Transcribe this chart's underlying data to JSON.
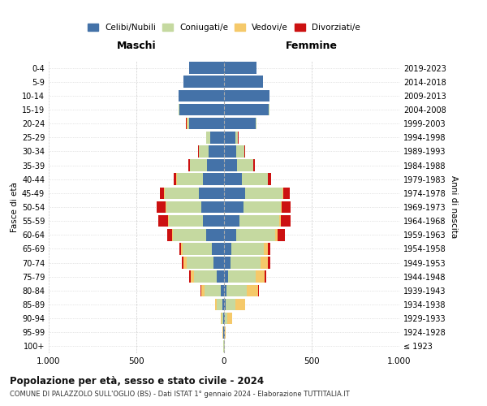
{
  "age_groups": [
    "100+",
    "95-99",
    "90-94",
    "85-89",
    "80-84",
    "75-79",
    "70-74",
    "65-69",
    "60-64",
    "55-59",
    "50-54",
    "45-49",
    "40-44",
    "35-39",
    "30-34",
    "25-29",
    "20-24",
    "15-19",
    "10-14",
    "5-9",
    "0-4"
  ],
  "birth_years": [
    "≤ 1923",
    "1924-1928",
    "1929-1933",
    "1934-1938",
    "1939-1943",
    "1944-1948",
    "1949-1953",
    "1954-1958",
    "1959-1963",
    "1964-1968",
    "1969-1973",
    "1974-1978",
    "1979-1983",
    "1984-1988",
    "1989-1993",
    "1994-1998",
    "1999-2003",
    "2004-2008",
    "2009-2013",
    "2014-2018",
    "2019-2023"
  ],
  "males": {
    "celibi": [
      2,
      3,
      5,
      10,
      20,
      40,
      60,
      70,
      100,
      120,
      130,
      145,
      120,
      95,
      90,
      80,
      200,
      255,
      260,
      230,
      200
    ],
    "coniugati": [
      1,
      3,
      8,
      30,
      90,
      130,
      155,
      165,
      190,
      195,
      200,
      195,
      150,
      100,
      55,
      20,
      10,
      5,
      0,
      0,
      0
    ],
    "vedovi": [
      1,
      2,
      5,
      10,
      20,
      18,
      15,
      10,
      5,
      3,
      2,
      1,
      1,
      0,
      0,
      0,
      5,
      0,
      0,
      0,
      0
    ],
    "divorziati": [
      0,
      0,
      0,
      2,
      5,
      10,
      10,
      10,
      30,
      55,
      50,
      25,
      15,
      10,
      5,
      2,
      2,
      0,
      0,
      0,
      0
    ]
  },
  "females": {
    "nubili": [
      2,
      3,
      5,
      10,
      15,
      25,
      35,
      40,
      70,
      90,
      110,
      120,
      100,
      75,
      70,
      65,
      180,
      255,
      260,
      220,
      185
    ],
    "coniugate": [
      1,
      3,
      15,
      55,
      115,
      155,
      175,
      185,
      220,
      225,
      215,
      215,
      150,
      90,
      45,
      15,
      5,
      2,
      0,
      0,
      0
    ],
    "vedove": [
      2,
      5,
      25,
      55,
      65,
      50,
      40,
      25,
      15,
      8,
      5,
      3,
      2,
      1,
      0,
      0,
      0,
      0,
      0,
      0,
      0
    ],
    "divorziate": [
      0,
      0,
      0,
      2,
      5,
      10,
      12,
      12,
      40,
      55,
      50,
      35,
      15,
      10,
      5,
      2,
      2,
      0,
      0,
      0,
      0
    ]
  },
  "colors": {
    "celibi": "#4472a8",
    "coniugati": "#c5d9a0",
    "vedovi": "#f5c96a",
    "divorziati": "#cc1111"
  },
  "xlim": 1000,
  "title": "Popolazione per età, sesso e stato civile - 2024",
  "subtitle": "COMUNE DI PALAZZOLO SULL'OGLIO (BS) - Dati ISTAT 1° gennaio 2024 - Elaborazione TUTTITALIA.IT",
  "ylabel_left": "Fasce di età",
  "ylabel_right": "Anni di nascita",
  "xlabel_left": "Maschi",
  "xlabel_right": "Femmine",
  "bg_color": "#ffffff",
  "grid_color": "#cccccc"
}
